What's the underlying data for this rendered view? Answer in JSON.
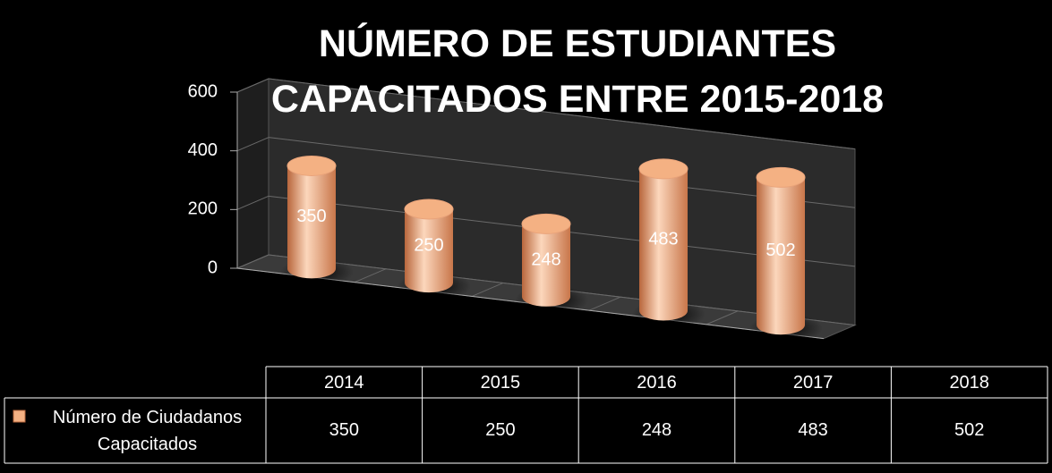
{
  "chart_data": {
    "type": "bar3d",
    "title": "NÚMERO DE ESTUDIANTES CAPACITADOS ENTRE 2015-2018",
    "categories": [
      "2014",
      "2015",
      "2016",
      "2017",
      "2018"
    ],
    "series": [
      {
        "name": "Número de Ciudadanos Capacitados",
        "color": "#f4b183",
        "values": [
          350,
          250,
          248,
          483,
          502
        ]
      }
    ],
    "ylim": [
      0,
      600
    ],
    "yticks": [
      0,
      200,
      400,
      600
    ],
    "grid": true,
    "data_table": true
  }
}
